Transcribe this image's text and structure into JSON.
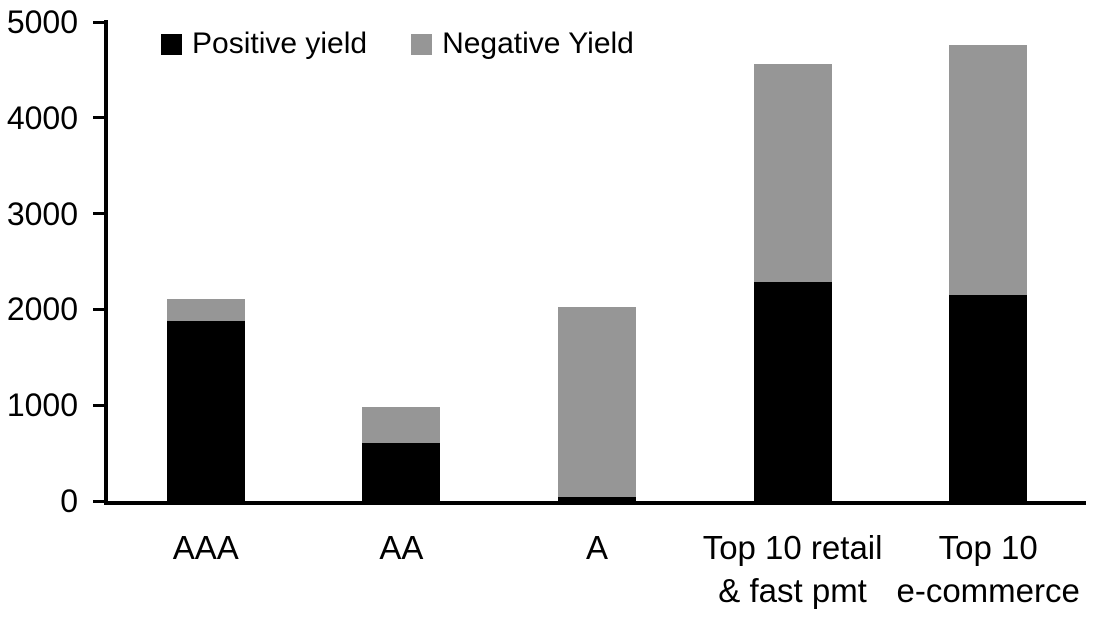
{
  "chart_data": {
    "type": "bar",
    "stacked": true,
    "title": "",
    "xlabel": "",
    "ylabel": "",
    "categories": [
      "AAA",
      "AA",
      "A",
      "Top 10 retail\n& fast pmt",
      "Top 10\ne-commerce"
    ],
    "series": [
      {
        "name": "Positive yield",
        "color": "#000000",
        "values": [
          1880,
          605,
          40,
          2285,
          2150
        ]
      },
      {
        "name": "Negative Yield",
        "color": "#969696",
        "values": [
          230,
          375,
          1990,
          2275,
          2610
        ]
      }
    ],
    "totals": [
      2110,
      980,
      2030,
      4560,
      4760
    ],
    "ylim": [
      0,
      5000
    ],
    "yticks": [
      0,
      1000,
      2000,
      3000,
      4000,
      5000
    ],
    "ytick_labels": [
      "0",
      "1000",
      "2000",
      "3000",
      "4000",
      "5000"
    ],
    "grid": false,
    "legend_position": "top-left-inside",
    "axis_color": "#000000",
    "background_color": "#ffffff"
  }
}
